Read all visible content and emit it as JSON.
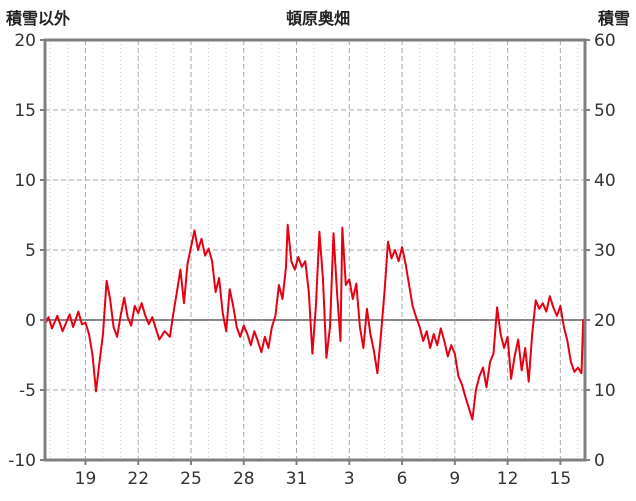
{
  "header": {
    "left_axis_title": "積雪以外",
    "title": "頓原奥畑",
    "right_axis_title": "積雪"
  },
  "colors": {
    "line": "#e60012",
    "frame": "#808080",
    "zero_line": "#888888",
    "major_grid": "#aaaaaa",
    "minor_grid": "#cccccc",
    "tick_text": "#333333"
  },
  "chart_data": {
    "type": "line",
    "title": "頓原奥畑",
    "left_axis": {
      "label": "積雪以外",
      "ylim": [
        -10,
        20
      ],
      "ticks": [
        20,
        15,
        10,
        5,
        0,
        -5,
        -10
      ]
    },
    "right_axis": {
      "label": "積雪",
      "ylim": [
        0,
        60
      ],
      "ticks": [
        60,
        50,
        40,
        30,
        20,
        10,
        0
      ]
    },
    "x_axis": {
      "range": [
        16.7,
        47.4
      ],
      "tick_positions": [
        19,
        22,
        25,
        28,
        31,
        34,
        37,
        40,
        43,
        46
      ],
      "tick_labels": [
        "19",
        "22",
        "25",
        "28",
        "31",
        "3",
        "6",
        "9",
        "12",
        "15"
      ],
      "minor_grid_step": 1
    },
    "zero_line": 0,
    "grid": true,
    "legend": "none",
    "series": [
      {
        "name": "積雪以外",
        "color": "#e60012",
        "points": [
          [
            16.7,
            -0.3
          ],
          [
            16.9,
            0.2
          ],
          [
            17.1,
            -0.6
          ],
          [
            17.4,
            0.3
          ],
          [
            17.7,
            -0.8
          ],
          [
            17.9,
            -0.2
          ],
          [
            18.1,
            0.4
          ],
          [
            18.3,
            -0.5
          ],
          [
            18.6,
            0.6
          ],
          [
            18.8,
            -0.3
          ],
          [
            19.0,
            -0.2
          ],
          [
            19.2,
            -1.0
          ],
          [
            19.4,
            -2.5
          ],
          [
            19.6,
            -5.1
          ],
          [
            19.8,
            -3.0
          ],
          [
            20.0,
            -1.0
          ],
          [
            20.2,
            2.8
          ],
          [
            20.4,
            1.5
          ],
          [
            20.6,
            -0.5
          ],
          [
            20.8,
            -1.2
          ],
          [
            21.0,
            0.3
          ],
          [
            21.2,
            1.6
          ],
          [
            21.4,
            0.2
          ],
          [
            21.6,
            -0.4
          ],
          [
            21.8,
            1.0
          ],
          [
            22.0,
            0.5
          ],
          [
            22.2,
            1.2
          ],
          [
            22.4,
            0.3
          ],
          [
            22.6,
            -0.3
          ],
          [
            22.8,
            0.2
          ],
          [
            23.0,
            -0.6
          ],
          [
            23.2,
            -1.4
          ],
          [
            23.5,
            -0.8
          ],
          [
            23.8,
            -1.2
          ],
          [
            24.0,
            0.5
          ],
          [
            24.2,
            2.0
          ],
          [
            24.4,
            3.6
          ],
          [
            24.6,
            1.2
          ],
          [
            24.8,
            4.0
          ],
          [
            25.0,
            5.2
          ],
          [
            25.2,
            6.4
          ],
          [
            25.4,
            5.0
          ],
          [
            25.6,
            5.8
          ],
          [
            25.8,
            4.6
          ],
          [
            26.0,
            5.1
          ],
          [
            26.2,
            4.2
          ],
          [
            26.4,
            2.0
          ],
          [
            26.6,
            3.0
          ],
          [
            26.8,
            0.5
          ],
          [
            27.0,
            -0.8
          ],
          [
            27.2,
            2.2
          ],
          [
            27.4,
            1.0
          ],
          [
            27.6,
            -0.5
          ],
          [
            27.8,
            -1.2
          ],
          [
            28.0,
            -0.4
          ],
          [
            28.2,
            -1.0
          ],
          [
            28.4,
            -1.8
          ],
          [
            28.6,
            -0.8
          ],
          [
            28.8,
            -1.5
          ],
          [
            29.0,
            -2.3
          ],
          [
            29.2,
            -1.2
          ],
          [
            29.4,
            -2.0
          ],
          [
            29.6,
            -0.5
          ],
          [
            29.8,
            0.3
          ],
          [
            30.0,
            2.5
          ],
          [
            30.2,
            1.5
          ],
          [
            30.4,
            3.8
          ],
          [
            30.5,
            6.8
          ],
          [
            30.7,
            4.2
          ],
          [
            30.9,
            3.6
          ],
          [
            31.1,
            4.5
          ],
          [
            31.3,
            3.8
          ],
          [
            31.5,
            4.2
          ],
          [
            31.7,
            2.0
          ],
          [
            31.9,
            -2.4
          ],
          [
            32.1,
            1.0
          ],
          [
            32.3,
            6.3
          ],
          [
            32.5,
            3.0
          ],
          [
            32.7,
            -2.7
          ],
          [
            32.9,
            -0.5
          ],
          [
            33.1,
            6.2
          ],
          [
            33.3,
            2.0
          ],
          [
            33.5,
            -1.5
          ],
          [
            33.6,
            6.6
          ],
          [
            33.8,
            2.5
          ],
          [
            34.0,
            2.9
          ],
          [
            34.2,
            1.5
          ],
          [
            34.4,
            2.6
          ],
          [
            34.6,
            -0.5
          ],
          [
            34.8,
            -2.0
          ],
          [
            35.0,
            0.8
          ],
          [
            35.2,
            -1.0
          ],
          [
            35.4,
            -2.2
          ],
          [
            35.6,
            -3.8
          ],
          [
            35.8,
            -1.0
          ],
          [
            36.0,
            2.0
          ],
          [
            36.2,
            5.6
          ],
          [
            36.4,
            4.4
          ],
          [
            36.6,
            5.0
          ],
          [
            36.8,
            4.2
          ],
          [
            37.0,
            5.2
          ],
          [
            37.2,
            4.0
          ],
          [
            37.4,
            2.5
          ],
          [
            37.6,
            1.0
          ],
          [
            37.8,
            0.2
          ],
          [
            38.0,
            -0.5
          ],
          [
            38.2,
            -1.5
          ],
          [
            38.4,
            -0.8
          ],
          [
            38.6,
            -2.0
          ],
          [
            38.8,
            -1.0
          ],
          [
            39.0,
            -1.8
          ],
          [
            39.2,
            -0.6
          ],
          [
            39.4,
            -1.5
          ],
          [
            39.6,
            -2.6
          ],
          [
            39.8,
            -1.8
          ],
          [
            40.0,
            -2.4
          ],
          [
            40.2,
            -4.0
          ],
          [
            40.4,
            -4.6
          ],
          [
            40.6,
            -5.5
          ],
          [
            40.8,
            -6.3
          ],
          [
            41.0,
            -7.1
          ],
          [
            41.2,
            -5.0
          ],
          [
            41.4,
            -4.0
          ],
          [
            41.6,
            -3.4
          ],
          [
            41.8,
            -4.8
          ],
          [
            42.0,
            -3.0
          ],
          [
            42.2,
            -2.4
          ],
          [
            42.4,
            0.9
          ],
          [
            42.6,
            -1.0
          ],
          [
            42.8,
            -2.0
          ],
          [
            43.0,
            -1.2
          ],
          [
            43.2,
            -4.2
          ],
          [
            43.4,
            -2.6
          ],
          [
            43.6,
            -1.4
          ],
          [
            43.8,
            -3.6
          ],
          [
            44.0,
            -2.0
          ],
          [
            44.2,
            -4.4
          ],
          [
            44.4,
            -1.0
          ],
          [
            44.6,
            1.4
          ],
          [
            44.8,
            0.8
          ],
          [
            45.0,
            1.2
          ],
          [
            45.2,
            0.6
          ],
          [
            45.4,
            1.7
          ],
          [
            45.6,
            0.9
          ],
          [
            45.8,
            0.3
          ],
          [
            46.0,
            1.0
          ],
          [
            46.2,
            -0.5
          ],
          [
            46.4,
            -1.5
          ],
          [
            46.6,
            -3.0
          ],
          [
            46.8,
            -3.7
          ],
          [
            47.0,
            -3.4
          ],
          [
            47.2,
            -3.8
          ],
          [
            47.3,
            0.0
          ]
        ]
      }
    ]
  }
}
